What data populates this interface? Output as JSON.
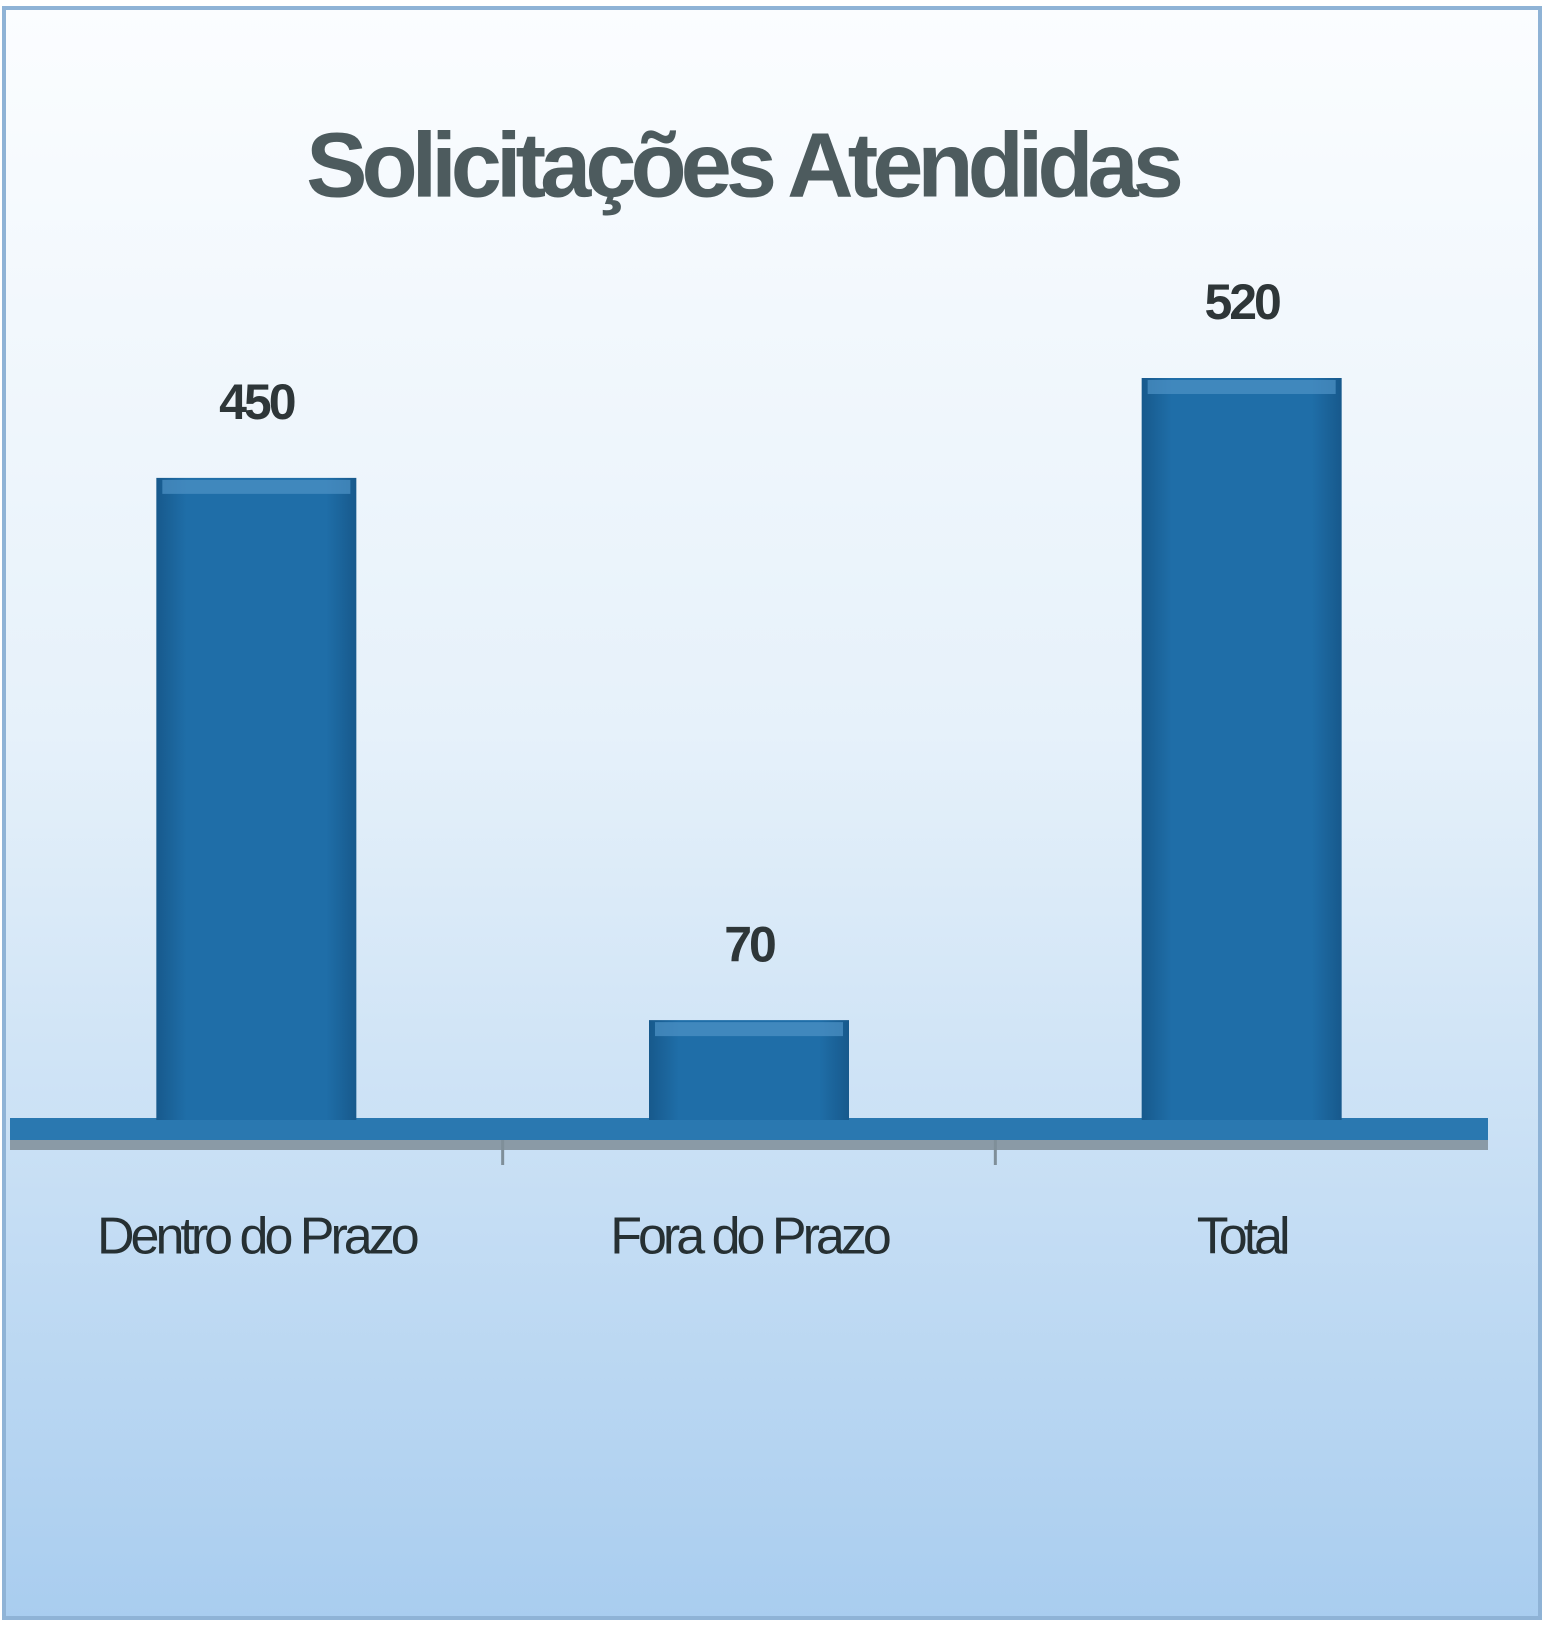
{
  "chart_data": {
    "type": "bar",
    "title": "Solicitações Atendidas",
    "categories": [
      "Dentro do Prazo",
      "Fora do Prazo",
      "Total"
    ],
    "values": [
      450,
      70,
      520
    ],
    "color": "#1f6ea8"
  }
}
